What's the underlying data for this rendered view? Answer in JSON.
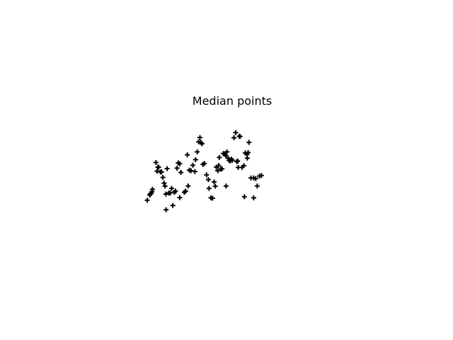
{
  "chart_data": {
    "type": "scatter",
    "title": "Median points",
    "xlabel": "",
    "ylabel": "",
    "axes_visible": false,
    "grid": false,
    "xlim": [
      0,
      1
    ],
    "ylim": [
      0,
      1
    ],
    "marker": "plus",
    "marker_color": "#000000",
    "series": [
      {
        "points": [
          [
            0.0,
            0.13
          ],
          [
            0.015,
            0.196
          ],
          [
            0.018,
            0.21
          ],
          [
            0.023,
            0.219
          ],
          [
            0.028,
            0.24
          ],
          [
            0.031,
            0.27
          ],
          [
            0.052,
            0.614
          ],
          [
            0.058,
            0.503
          ],
          [
            0.063,
            0.554
          ],
          [
            0.068,
            0.554
          ],
          [
            0.078,
            0.493
          ],
          [
            0.085,
            0.493
          ],
          [
            0.093,
            0.423
          ],
          [
            0.1,
            0.35
          ],
          [
            0.106,
            0.311
          ],
          [
            0.111,
            0.209
          ],
          [
            0.112,
            0.008
          ],
          [
            0.118,
            0.536
          ],
          [
            0.128,
            0.223
          ],
          [
            0.137,
            0.223
          ],
          [
            0.145,
            0.282
          ],
          [
            0.152,
            0.063
          ],
          [
            0.161,
            0.232
          ],
          [
            0.168,
            0.248
          ],
          [
            0.177,
            0.542
          ],
          [
            0.184,
            0.609
          ],
          [
            0.193,
            0.598
          ],
          [
            0.193,
            0.164
          ],
          [
            0.2,
            0.487
          ],
          [
            0.22,
            0.232
          ],
          [
            0.228,
            0.247
          ],
          [
            0.238,
            0.713
          ],
          [
            0.243,
            0.313
          ],
          [
            0.25,
            0.516
          ],
          [
            0.26,
            0.509
          ],
          [
            0.271,
            0.579
          ],
          [
            0.283,
            0.498
          ],
          [
            0.287,
            0.651
          ],
          [
            0.297,
            0.751
          ],
          [
            0.305,
            0.88
          ],
          [
            0.313,
            0.935
          ],
          [
            0.318,
            0.873
          ],
          [
            0.325,
            0.855
          ],
          [
            0.331,
            0.59
          ],
          [
            0.339,
            0.602
          ],
          [
            0.352,
            0.456
          ],
          [
            0.363,
            0.395
          ],
          [
            0.367,
            0.282
          ],
          [
            0.378,
            0.161
          ],
          [
            0.388,
            0.156
          ],
          [
            0.397,
            0.365
          ],
          [
            0.404,
            0.31
          ],
          [
            0.41,
            0.555
          ],
          [
            0.419,
            0.509
          ],
          [
            0.424,
            0.577
          ],
          [
            0.428,
            0.679
          ],
          [
            0.437,
            0.531
          ],
          [
            0.444,
            0.533
          ],
          [
            0.452,
            0.73
          ],
          [
            0.46,
            0.72
          ],
          [
            0.467,
            0.702
          ],
          [
            0.468,
            0.312
          ],
          [
            0.473,
            0.751
          ],
          [
            0.48,
            0.671
          ],
          [
            0.486,
            0.642
          ],
          [
            0.493,
            0.635
          ],
          [
            0.5,
            0.657
          ],
          [
            0.505,
            0.642
          ],
          [
            0.515,
            0.932
          ],
          [
            0.525,
            0.998
          ],
          [
            0.532,
            0.626
          ],
          [
            0.537,
            0.633
          ],
          [
            0.54,
            0.551
          ],
          [
            0.547,
            0.952
          ],
          [
            0.551,
            0.948
          ],
          [
            0.563,
            0.552
          ],
          [
            0.574,
            0.574
          ],
          [
            0.577,
            0.175
          ],
          [
            0.582,
            0.737
          ],
          [
            0.592,
            0.717
          ],
          [
            0.594,
            0.67
          ],
          [
            0.599,
            0.743
          ],
          [
            0.604,
            0.872
          ],
          [
            0.616,
            0.416
          ],
          [
            0.632,
            0.161
          ],
          [
            0.632,
            0.416
          ],
          [
            0.644,
            0.408
          ],
          [
            0.653,
            0.313
          ],
          [
            0.666,
            0.44
          ],
          [
            0.678,
            0.448
          ]
        ]
      }
    ]
  }
}
